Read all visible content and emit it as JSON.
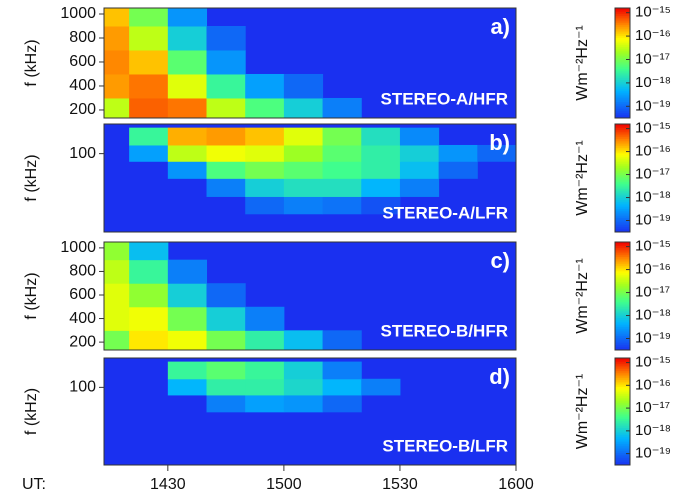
{
  "chart_data": [
    {
      "type": "heatmap",
      "label": "a)",
      "title": "STEREO-A/HFR",
      "ylabel": "f (kHz)",
      "log_y": false,
      "xlim": [
        13.5,
        120
      ],
      "ylim": [
        133,
        1050
      ],
      "yticks": [
        200,
        400,
        600,
        800,
        1000
      ],
      "x": [
        15,
        25,
        35,
        45,
        55,
        65,
        75,
        85,
        95,
        105,
        115
      ],
      "y": [
        200,
        400,
        600,
        800,
        1000
      ],
      "z": [
        [
          -16.5,
          -15.3,
          -15.4,
          -16.5,
          -17.3,
          -18,
          -18.8,
          null,
          null,
          null,
          null
        ],
        [
          -15.6,
          -15.4,
          -16.3,
          -17.5,
          -18.5,
          -19,
          null,
          null,
          null,
          null,
          null
        ],
        [
          -15.5,
          -15.8,
          -17.2,
          -18.6,
          null,
          null,
          null,
          null,
          null,
          null,
          null
        ],
        [
          -15.6,
          -16.5,
          -18,
          -19,
          null,
          null,
          null,
          null,
          null,
          null,
          null
        ],
        [
          -15.8,
          -17,
          -18.6,
          null,
          null,
          null,
          null,
          null,
          null,
          null,
          null
        ]
      ],
      "zlim": [
        -19.5,
        -14.8
      ],
      "colormap": "jet",
      "zlabel": "Wm⁻²Hz⁻¹",
      "zticks": [
        {
          "value": -15,
          "label": "10⁻¹⁵"
        },
        {
          "value": -16,
          "label": "10⁻¹⁶"
        },
        {
          "value": -17,
          "label": "10⁻¹⁷"
        },
        {
          "value": -18,
          "label": "10⁻¹⁸"
        },
        {
          "value": -19,
          "label": "10⁻¹⁹"
        }
      ]
    },
    {
      "type": "heatmap",
      "label": "b)",
      "title": "STEREO-A/LFR",
      "ylabel": "f (kHz)",
      "log_y": true,
      "xlim": [
        13.5,
        120
      ],
      "ylim": [
        16,
        200
      ],
      "yticks": [
        100
      ],
      "x": [
        15,
        25,
        35,
        45,
        55,
        65,
        75,
        85,
        95,
        105,
        115
      ],
      "y": [
        20,
        30,
        45,
        70,
        100,
        150
      ],
      "z": [
        [
          null,
          null,
          null,
          null,
          null,
          null,
          null,
          null,
          null,
          null,
          null
        ],
        [
          null,
          null,
          null,
          null,
          -19,
          -18.8,
          -18.9,
          -19.2,
          null,
          null,
          null
        ],
        [
          null,
          null,
          null,
          -18.8,
          -18,
          -17.8,
          -17.8,
          -18.3,
          -18.8,
          null,
          null
        ],
        [
          null,
          null,
          -18.6,
          -17.3,
          -17,
          -17.2,
          -17.4,
          -17.6,
          -18.2,
          -19,
          null
        ],
        [
          null,
          -18.5,
          -16.5,
          -16.2,
          -16.3,
          -16.7,
          -17.2,
          -17.6,
          -18,
          -18.6,
          -19
        ],
        [
          null,
          -17.5,
          -15.7,
          -15.6,
          -15.8,
          -16.3,
          -17,
          -17.8,
          -18.7,
          null,
          null
        ]
      ],
      "zlim": [
        -19.5,
        -14.8
      ],
      "colormap": "jet",
      "zlabel": "Wm⁻²Hz⁻¹",
      "zticks": [
        {
          "value": -15,
          "label": "10⁻¹⁵"
        },
        {
          "value": -16,
          "label": "10⁻¹⁶"
        },
        {
          "value": -17,
          "label": "10⁻¹⁷"
        },
        {
          "value": -18,
          "label": "10⁻¹⁸"
        },
        {
          "value": -19,
          "label": "10⁻¹⁹"
        }
      ]
    },
    {
      "type": "heatmap",
      "label": "c)",
      "title": "STEREO-B/HFR",
      "ylabel": "f (kHz)",
      "log_y": false,
      "xlim": [
        13.5,
        120
      ],
      "ylim": [
        133,
        1050
      ],
      "yticks": [
        200,
        400,
        600,
        800,
        1000
      ],
      "x": [
        15,
        25,
        35,
        45,
        55,
        65,
        75,
        85,
        95,
        105,
        115
      ],
      "y": [
        200,
        400,
        600,
        800,
        1000
      ],
      "z": [
        [
          -17,
          -16,
          -16.2,
          -17,
          -17.6,
          -18.2,
          -19,
          null,
          null,
          null,
          null
        ],
        [
          -16.3,
          -16.2,
          -17,
          -18,
          -18.8,
          null,
          null,
          null,
          null,
          null,
          null
        ],
        [
          -16.3,
          -16.8,
          -18,
          -19,
          null,
          null,
          null,
          null,
          null,
          null,
          null
        ],
        [
          -16.5,
          -17.5,
          -18.8,
          null,
          null,
          null,
          null,
          null,
          null,
          null,
          null
        ],
        [
          -16.8,
          -18.2,
          null,
          null,
          null,
          null,
          null,
          null,
          null,
          null,
          null
        ]
      ],
      "zlim": [
        -19.5,
        -14.8
      ],
      "colormap": "jet",
      "zlabel": "Wm⁻²Hz⁻¹",
      "zticks": [
        {
          "value": -15,
          "label": "10⁻¹⁵"
        },
        {
          "value": -16,
          "label": "10⁻¹⁶"
        },
        {
          "value": -17,
          "label": "10⁻¹⁷"
        },
        {
          "value": -18,
          "label": "10⁻¹⁸"
        },
        {
          "value": -19,
          "label": "10⁻¹⁹"
        }
      ]
    },
    {
      "type": "heatmap",
      "label": "d)",
      "title": "STEREO-B/LFR",
      "ylabel": "f (kHz)",
      "log_y": true,
      "xlim": [
        13.5,
        120
      ],
      "ylim": [
        16,
        200
      ],
      "yticks": [
        100
      ],
      "xlabel": "UT:",
      "xticks": [
        {
          "value": 30,
          "label": "1430"
        },
        {
          "value": 60,
          "label": "1500"
        },
        {
          "value": 90,
          "label": "1530"
        },
        {
          "value": 120,
          "label": "1600"
        }
      ],
      "x": [
        15,
        25,
        35,
        45,
        55,
        65,
        75,
        85,
        95,
        105,
        115
      ],
      "y": [
        20,
        30,
        45,
        70,
        100,
        150
      ],
      "z": [
        [
          null,
          null,
          null,
          null,
          null,
          null,
          null,
          null,
          null,
          null,
          null
        ],
        [
          null,
          null,
          null,
          null,
          null,
          null,
          null,
          null,
          null,
          null,
          null
        ],
        [
          null,
          null,
          null,
          null,
          null,
          null,
          null,
          null,
          null,
          null,
          null
        ],
        [
          null,
          null,
          null,
          -18.8,
          -18.5,
          -18.6,
          -19,
          null,
          null,
          null,
          null
        ],
        [
          null,
          null,
          -18.3,
          -17.6,
          -17.6,
          -17.9,
          -18.3,
          -18.8,
          null,
          null,
          null
        ],
        [
          null,
          null,
          -17.5,
          -17.2,
          -17.5,
          -18,
          -18.8,
          null,
          null,
          null,
          null
        ]
      ],
      "zlim": [
        -19.5,
        -14.8
      ],
      "colormap": "jet",
      "zlabel": "Wm⁻²Hz⁻¹",
      "zticks": [
        {
          "value": -15,
          "label": "10⁻¹⁵"
        },
        {
          "value": -16,
          "label": "10⁻¹⁶"
        },
        {
          "value": -17,
          "label": "10⁻¹⁷"
        },
        {
          "value": -18,
          "label": "10⁻¹⁸"
        },
        {
          "value": -19,
          "label": "10⁻¹⁹"
        }
      ]
    }
  ]
}
